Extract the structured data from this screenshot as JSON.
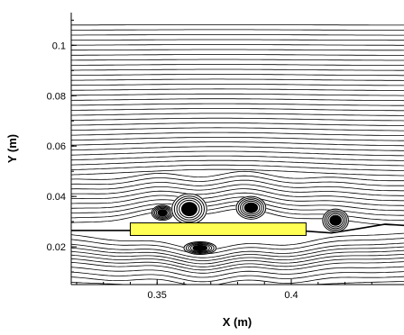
{
  "chart_data": {
    "type": "line",
    "title": "",
    "xlabel": "X (m)",
    "ylabel": "Y (m)",
    "xlim": [
      0.318,
      0.442
    ],
    "ylim": [
      0.005,
      0.113
    ],
    "xticks": [
      0.35,
      0.4
    ],
    "xtick_labels": [
      "0.35",
      "0.4"
    ],
    "yticks": [
      0.02,
      0.04,
      0.06,
      0.08,
      0.1
    ],
    "ytick_labels": [
      "0.02",
      "0.04",
      "0.06",
      "0.08",
      "0.1"
    ],
    "grid": false,
    "series": [
      {
        "values": [],
        "style": "streamlines",
        "color": "#000000",
        "y_start": [
          0.0065,
          0.0085,
          0.0105,
          0.0125,
          0.0145,
          0.016,
          0.0175,
          0.019,
          0.0205,
          0.022,
          0.024,
          0.026,
          0.028,
          0.03,
          0.032,
          0.034,
          0.036,
          0.038,
          0.04,
          0.042,
          0.044,
          0.046,
          0.048,
          0.05,
          0.052,
          0.054,
          0.056,
          0.058,
          0.06,
          0.062,
          0.064,
          0.066,
          0.068,
          0.07,
          0.072,
          0.074,
          0.076,
          0.078,
          0.08,
          0.082,
          0.084,
          0.086,
          0.088,
          0.09,
          0.092,
          0.094,
          0.096,
          0.098,
          0.1,
          0.102,
          0.104,
          0.106,
          0.108
        ]
      }
    ],
    "vortices": [
      {
        "x": 0.352,
        "y": 0.0335,
        "rx": 0.004,
        "ry": 0.003
      },
      {
        "x": 0.362,
        "y": 0.035,
        "rx": 0.0065,
        "ry": 0.006
      },
      {
        "x": 0.385,
        "y": 0.0355,
        "rx": 0.0055,
        "ry": 0.0045
      },
      {
        "x": 0.4165,
        "y": 0.0305,
        "rx": 0.0048,
        "ry": 0.0045
      },
      {
        "x": 0.366,
        "y": 0.0195,
        "rx": 0.006,
        "ry": 0.0025
      }
    ],
    "obstacle": {
      "x0": 0.34,
      "x1": 0.4055,
      "y0": 0.0245,
      "y1": 0.0295,
      "color": "#ffff54"
    }
  }
}
